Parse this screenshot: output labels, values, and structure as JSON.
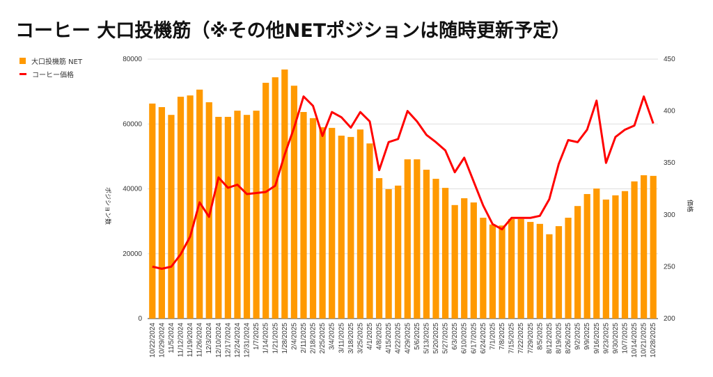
{
  "title": "コーヒー 大口投機筋（※その他NETポジションは随時更新予定）",
  "chart_data": {
    "type": "bar+line",
    "title": "コーヒー 大口投機筋（※その他NETポジションは随時更新予定）",
    "categories": [
      "10/22/2024",
      "10/29/2024",
      "11/5/2024",
      "11/12/2024",
      "11/19/2024",
      "11/26/2024",
      "12/3/2024",
      "12/10/2024",
      "12/17/2024",
      "12/24/2024",
      "12/31/2024",
      "1/7/2025",
      "1/14/2025",
      "1/21/2025",
      "1/28/2025",
      "2/4/2025",
      "2/11/2025",
      "2/18/2025",
      "2/25/2025",
      "3/4/2025",
      "3/11/2025",
      "3/18/2025",
      "3/25/2025",
      "4/1/2025",
      "4/8/2025",
      "4/15/2025",
      "4/22/2025",
      "4/29/2025",
      "5/6/2025",
      "5/13/2025",
      "5/20/2025",
      "5/27/2025",
      "6/3/2025",
      "6/10/2025",
      "6/17/2025",
      "6/24/2025",
      "7/1/2025",
      "7/8/2025",
      "7/15/2025",
      "7/22/2025",
      "7/29/2025",
      "8/5/2025",
      "8/12/2025",
      "8/19/2025",
      "8/26/2025",
      "9/2/2025",
      "9/9/2025",
      "9/16/2025",
      "9/23/2025",
      "9/30/2025",
      "10/7/2025",
      "10/14/2025",
      "10/21/2025",
      "10/28/2025"
    ],
    "series": [
      {
        "name": "大口投機筋  NET",
        "type": "bar",
        "axis": "left",
        "color": "#ff9900",
        "values": [
          66300,
          65200,
          62800,
          68400,
          68800,
          70600,
          66700,
          62200,
          62200,
          64100,
          62800,
          64100,
          72700,
          74400,
          76800,
          71800,
          63700,
          61800,
          59000,
          58800,
          56400,
          56000,
          58300,
          54000,
          43300,
          39900,
          41000,
          49100,
          49100,
          45900,
          43100,
          40300,
          35000,
          37100,
          35800,
          31100,
          29000,
          28700,
          30700,
          30700,
          29800,
          29200,
          26000,
          28500,
          31100,
          34700,
          38400,
          40100,
          36700,
          38000,
          39300,
          42300,
          44200,
          44000
        ]
      },
      {
        "name": "コーヒー価格",
        "type": "line",
        "axis": "right",
        "color": "#ff0000",
        "values": [
          250,
          248,
          250,
          262,
          279,
          312,
          298,
          336,
          326,
          329,
          320,
          321,
          322,
          328,
          358,
          384,
          414,
          405,
          376,
          399,
          394,
          384,
          399,
          390,
          343,
          370,
          373,
          400,
          390,
          377,
          370,
          362,
          341,
          355,
          332,
          309,
          291,
          286,
          297,
          297,
          297,
          299,
          315,
          349,
          372,
          370,
          382,
          410,
          350,
          375,
          382,
          386,
          414,
          388
        ]
      }
    ],
    "ylabel": "ポジション数",
    "y2label": "価格",
    "ylim": [
      0,
      80000
    ],
    "yticks": [
      "0",
      "20000",
      "40000",
      "60000",
      "80000"
    ],
    "y2lim": [
      200,
      450
    ],
    "y2ticks": [
      "200",
      "250",
      "300",
      "350",
      "400",
      "450"
    ],
    "grid": true,
    "legend": "top-left"
  }
}
